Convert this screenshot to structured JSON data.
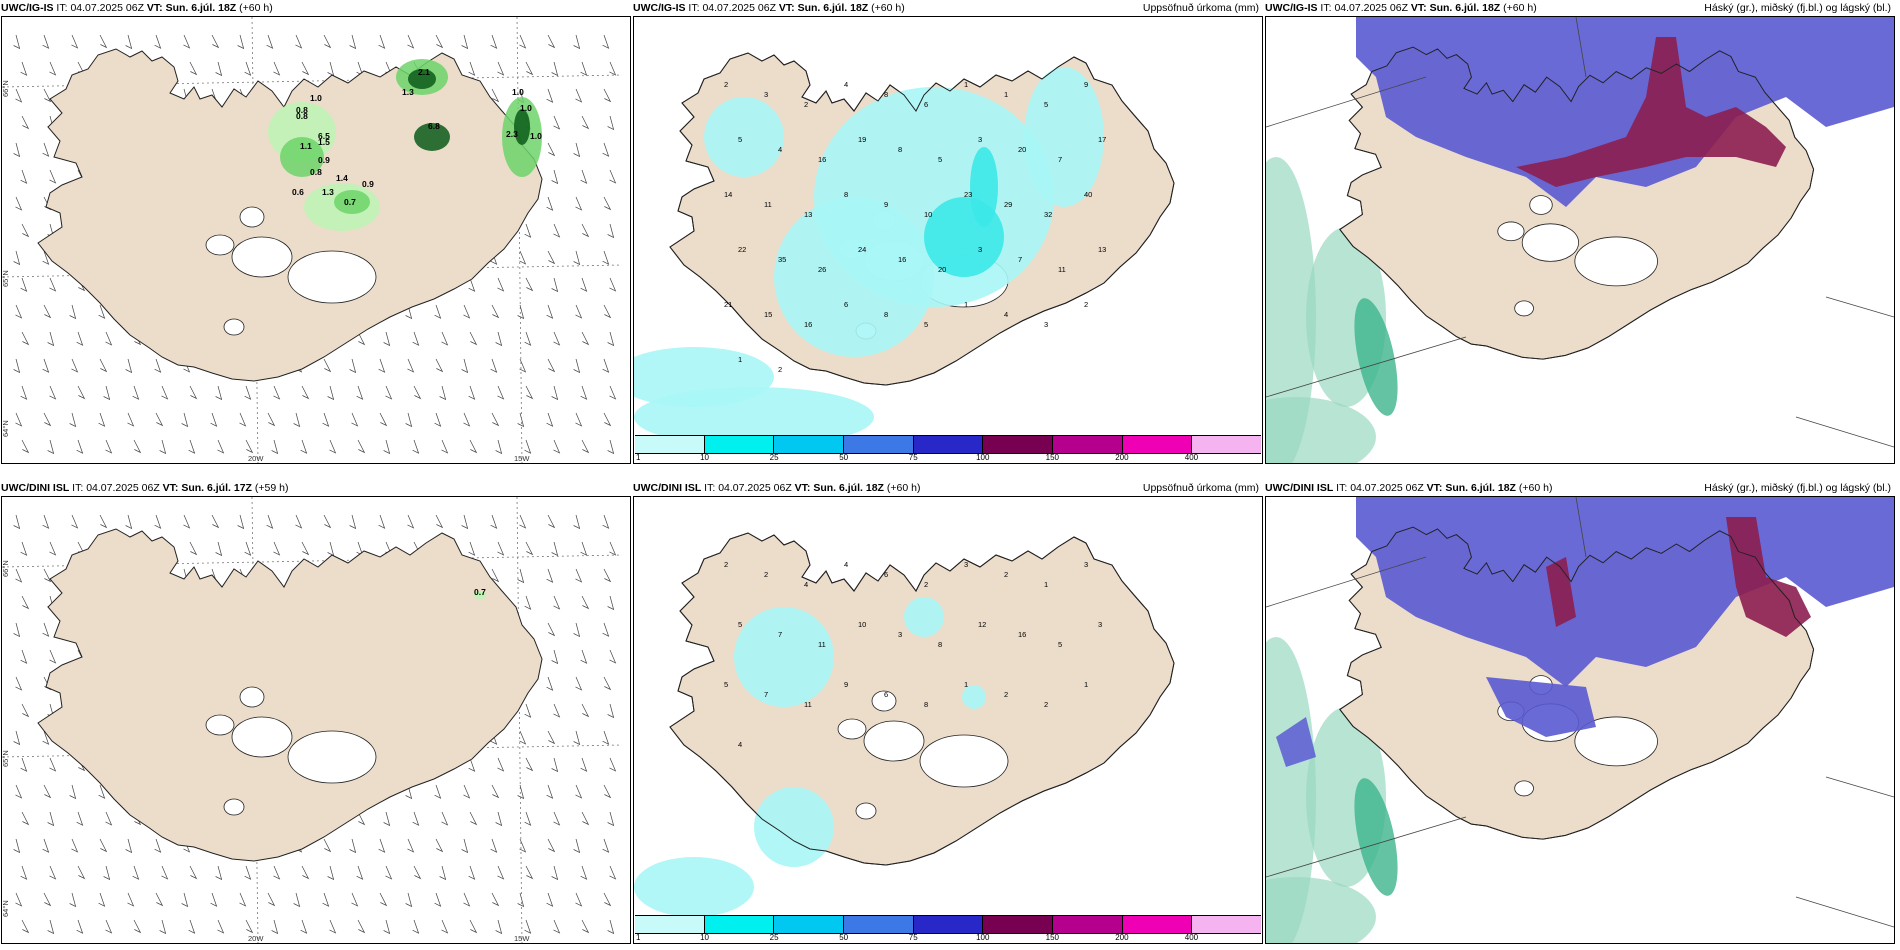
{
  "panels": [
    {
      "model": "UWC/IG-IS",
      "it_label": "IT:",
      "it": "04.07.2025 06Z",
      "vt_label": "VT:",
      "vt": "Sun. 6.júl. 18Z",
      "lead": "(+60 h)",
      "right": ""
    },
    {
      "model": "UWC/IG-IS",
      "it_label": "IT:",
      "it": "04.07.2025 06Z",
      "vt_label": "VT:",
      "vt": "Sun. 6.júl. 18Z",
      "lead": "(+60 h)",
      "right": "Uppsöfnuð úrkoma (mm)"
    },
    {
      "model": "UWC/IG-IS",
      "it_label": "IT:",
      "it": "04.07.2025 06Z",
      "vt_label": "VT:",
      "vt": "Sun. 6.júl. 18Z",
      "lead": "(+60 h)",
      "right": "Háský (gr.), miðský (fj.bl.) og lágský (bl.)"
    },
    {
      "model": "UWC/DINI ISL",
      "it_label": "IT:",
      "it": "04.07.2025 06Z",
      "vt_label": "VT:",
      "vt": "Sun. 6.júl. 17Z",
      "lead": "(+59 h)",
      "right": ""
    },
    {
      "model": "UWC/DINI ISL",
      "it_label": "IT:",
      "it": "04.07.2025 06Z",
      "vt_label": "VT:",
      "vt": "Sun. 6.júl. 18Z",
      "lead": "(+60 h)",
      "right": "Uppsöfnuð úrkoma (mm)"
    },
    {
      "model": "UWC/DINI ISL",
      "it_label": "IT:",
      "it": "04.07.2025 06Z",
      "vt_label": "VT:",
      "vt": "Sun. 6.júl. 18Z",
      "lead": "(+60 h)",
      "right": "Háský (gr.), miðský (fj.bl.) og lágský (bl.)"
    }
  ],
  "grid_labels": {
    "lat_66": "66°N",
    "lat_65": "65°N",
    "lat_64": "64°N",
    "lon_20": "20W",
    "lon_15": "15W"
  },
  "precip_scale": {
    "ticks": [
      "1",
      "10",
      "25",
      "50",
      "75",
      "100",
      "150",
      "200",
      "400"
    ],
    "colors": [
      "#c8fafa",
      "#00f0f0",
      "#00c8f0",
      "#3c78e6",
      "#2828c8",
      "#780050",
      "#b4008c",
      "#f000b4",
      "#f5b4f0"
    ]
  },
  "colors": {
    "land": "#ecdcca",
    "coast": "#222222",
    "precip_light": "#a8f6f6",
    "precip_cyan": "#3ce8e8",
    "high_cloud": "#8c1e50",
    "mid_cloud": "#5a5ad2",
    "low_cloud": "#3cb48c"
  },
  "ig_wind_values": [
    "1.0",
    "0.8",
    "0.8",
    "6.5",
    "1.1",
    "1.5",
    "0.9",
    "0.8",
    "1.4",
    "0.9",
    "0.6",
    "1.3",
    "0.7",
    "2.1",
    "1.3",
    "6.8",
    "1.0",
    "1.0",
    "2.3",
    "1.0"
  ],
  "dini_wind_values": [
    "0.7"
  ],
  "ig_precip_values": [
    "2",
    "3",
    "2",
    "4",
    "8",
    "6",
    "1",
    "1",
    "5",
    "9",
    "5",
    "4",
    "16",
    "19",
    "8",
    "5",
    "3",
    "20",
    "7",
    "17",
    "14",
    "11",
    "13",
    "8",
    "9",
    "10",
    "23",
    "29",
    "32",
    "40",
    "22",
    "35",
    "26",
    "24",
    "16",
    "20",
    "3",
    "7",
    "11",
    "13",
    "21",
    "15",
    "16",
    "6",
    "8",
    "5",
    "1",
    "4",
    "3",
    "2",
    "1",
    "2"
  ],
  "dini_precip_values": [
    "2",
    "2",
    "4",
    "4",
    "6",
    "2",
    "3",
    "2",
    "1",
    "3",
    "5",
    "7",
    "11",
    "10",
    "3",
    "8",
    "12",
    "16",
    "5",
    "3",
    "5",
    "7",
    "11",
    "9",
    "6",
    "8",
    "1",
    "2",
    "2",
    "1",
    "4"
  ]
}
